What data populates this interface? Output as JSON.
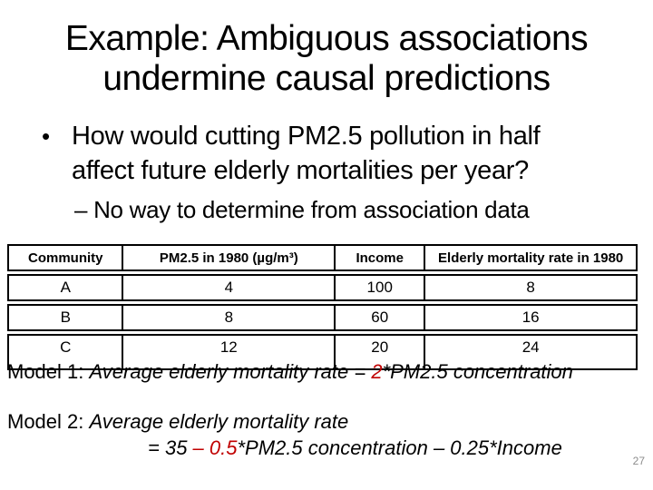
{
  "slide": {
    "title_lines": [
      "Example: Ambiguous associations",
      "undermine causal predictions"
    ],
    "bullet": {
      "marker": "•",
      "lines": [
        "How would cutting PM2.5 pollution in half",
        "affect future elderly mortalities per year?"
      ]
    },
    "sub_bullet": "– No way to determine from association data",
    "table": {
      "headers": [
        "Community",
        "PM2.5 in 1980 (µg/m³)",
        "Income",
        "Elderly mortality rate in 1980"
      ],
      "rows": [
        [
          "A",
          "4",
          "100",
          "8"
        ],
        [
          "B",
          "8",
          "60",
          "16"
        ],
        [
          "C",
          "12",
          "20",
          "24"
        ]
      ]
    },
    "model1": {
      "label": "Model 1:",
      "formula_prefix": "Average elderly mortality rate = ",
      "highlight": "2",
      "formula_suffix": "*PM2.5 concentration"
    },
    "model2": {
      "label": "Model 2:",
      "line1": "Average elderly mortality rate",
      "line2_prefix": "= 35 ",
      "highlight": "– 0.5",
      "line2_suffix": "*PM2.5 concentration – 0.25*Income"
    },
    "page_number": "27",
    "colors": {
      "text": "#000000",
      "highlight": "#c00000",
      "page_number": "#8c8c8c",
      "background": "#ffffff"
    }
  }
}
